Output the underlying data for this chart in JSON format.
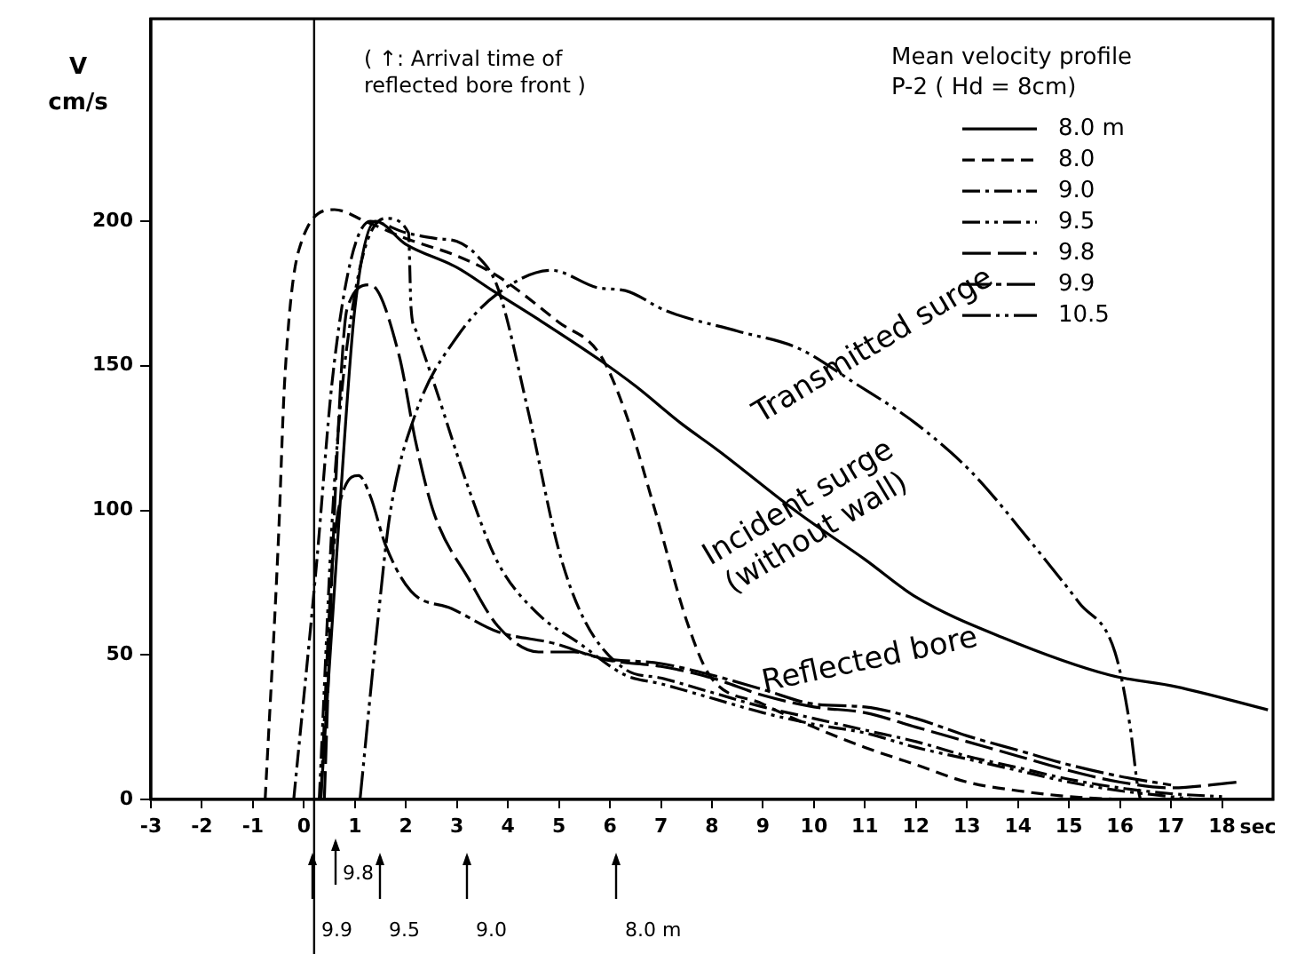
{
  "chart_data": {
    "type": "line",
    "ylabel": "V cm/s",
    "xlabel": "sec",
    "legend_title": "Mean velocity profile P-2 ( Hd = 8cm)",
    "legend": "top right",
    "xlim": [
      -3,
      19
    ],
    "xticks": [
      -3,
      -2,
      -1,
      0,
      1,
      2,
      3,
      4,
      5,
      6,
      7,
      8,
      9,
      10,
      11,
      12,
      13,
      14,
      15,
      16,
      17,
      18
    ],
    "ylim": [
      0,
      270
    ],
    "yticks": [
      0,
      50,
      100,
      150,
      200
    ],
    "ref_lines": [
      {
        "axis": "x",
        "value": 0.2
      }
    ],
    "annotations": [
      "( ↑: Arrival time of reflected bore front )",
      "Transmitted surge",
      "Incident surge (without wall)",
      "Reflected bore",
      "9.9",
      "9.8",
      "9.5",
      "9.0",
      "8.0 m"
    ],
    "series": [
      {
        "name": "8.0 m",
        "color": "#000000",
        "line_style": "solid",
        "x": [
          0.33,
          0.7,
          1.0,
          1.4,
          2,
          3,
          3.7,
          4.6,
          5.8,
          6.5,
          7.4,
          8.1,
          9.7,
          11,
          12,
          13.7,
          15.8,
          17.1,
          18.9
        ],
        "values": [
          0,
          100,
          170,
          200,
          192,
          184,
          176,
          166,
          152,
          143,
          130,
          121,
          99,
          83,
          70,
          56,
          43,
          39,
          31
        ]
      },
      {
        "name": "8.0",
        "color": "#000000",
        "line_style": "dashed",
        "x": [
          -0.76,
          -0.5,
          -0.38,
          -0.1,
          0.6,
          1.2,
          2,
          3,
          3.8,
          5,
          5.8,
          6.3,
          6.9,
          7.5,
          7.95,
          9,
          10,
          11,
          12,
          13,
          14,
          15,
          16
        ],
        "values": [
          0,
          90,
          144,
          190,
          204,
          200,
          194,
          188,
          181,
          165,
          154,
          134,
          99,
          62,
          43,
          33,
          25,
          18,
          12,
          6,
          3,
          1,
          0
        ]
      },
      {
        "name": "9.0",
        "color": "#000000",
        "line_style": "dashdot",
        "x": [
          -0.2,
          0.25,
          0.55,
          0.9,
          1.3,
          2,
          2.6,
          3,
          3.4,
          3.8,
          4.4,
          5,
          5.5,
          6.3,
          7,
          8,
          9,
          10,
          11,
          12,
          13,
          14,
          15,
          16,
          17,
          18
        ],
        "values": [
          0,
          82,
          144,
          185,
          200,
          196,
          194,
          193,
          188,
          177,
          134,
          86,
          62,
          45,
          42,
          37,
          32,
          28,
          24,
          20,
          15,
          11,
          7,
          4,
          2,
          1
        ]
      },
      {
        "name": "9.5",
        "color": "#000000",
        "line_style": "dashdotdot",
        "x": [
          0.3,
          0.6,
          1.0,
          1.6,
          2.05,
          2.1,
          2.2,
          2.55,
          3.24,
          3.8,
          4.6,
          5.4,
          6.3,
          7,
          8,
          9,
          10,
          11,
          12,
          13,
          14,
          15,
          16,
          17,
          17.5
        ],
        "values": [
          0,
          110,
          175,
          201,
          196,
          170,
          162,
          144,
          107,
          82,
          64,
          54,
          43,
          40,
          35,
          30,
          26,
          23,
          18,
          14,
          10,
          6,
          3,
          1,
          0
        ]
      },
      {
        "name": "9.8",
        "color": "#000000",
        "line_style": "longdash",
        "x": [
          0.4,
          0.6,
          0.85,
          1.3,
          1.86,
          2.2,
          2.55,
          3.24,
          3.8,
          4.6,
          5.3,
          6,
          7,
          8,
          9,
          10,
          11,
          12,
          13,
          14,
          15,
          16,
          17,
          18.3
        ],
        "values": [
          0,
          100,
          170,
          178,
          154,
          123,
          99,
          76,
          60,
          51,
          51,
          48,
          46,
          42,
          36,
          32,
          30,
          25,
          20,
          15,
          10,
          6,
          4,
          6
        ]
      },
      {
        "name": "9.9",
        "color": "#000000",
        "line_style": "longdashdot",
        "x": [
          0.33,
          0.55,
          0.8,
          1.07,
          1.3,
          1.6,
          2.1,
          2.9,
          3.8,
          4.9,
          5.8,
          7,
          8,
          9,
          10,
          11,
          12,
          13,
          14,
          15,
          16,
          17
        ],
        "values": [
          0,
          80,
          108,
          112,
          105,
          88,
          72,
          66,
          58,
          54,
          49,
          47,
          43,
          38,
          33,
          32,
          28,
          22,
          17,
          12,
          8,
          5
        ]
      },
      {
        "name": "10.5",
        "color": "#000000",
        "line_style": "longdashdotdot",
        "x": [
          1.1,
          1.45,
          1.69,
          2.2,
          3.0,
          3.8,
          4.86,
          5.76,
          6.3,
          7.1,
          8.5,
          9.7,
          10.8,
          12.0,
          13.1,
          14.3,
          15.2,
          15.9,
          16.2,
          16.35,
          16.4
        ],
        "values": [
          0,
          62,
          99,
          134,
          160,
          175,
          183,
          177,
          176,
          169,
          162,
          156,
          144,
          130,
          113,
          88,
          68,
          51,
          25,
          4,
          0
        ]
      }
    ]
  }
}
